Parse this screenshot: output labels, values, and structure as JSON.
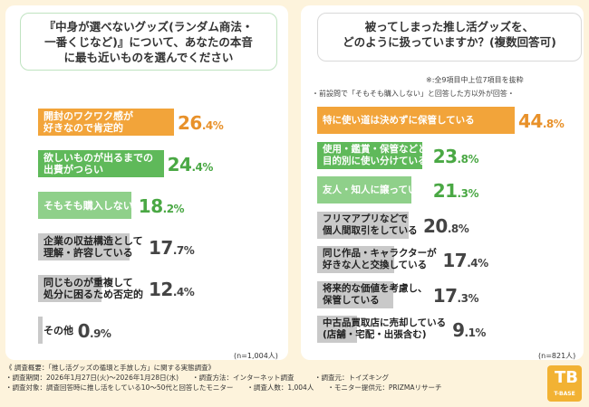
{
  "left": {
    "question": "『中身が選べないグッズ(ランダム商法・一番くじなど)』について、あなたの本音に最も近いものを選んでください",
    "question_lines": [
      "『中身が選べないグッズ(ランダム商法・",
      "一番くじなど)』について、あなたの本音",
      "に最も近いものを選んでください"
    ],
    "n": "(n=1,004人)"
  },
  "right": {
    "question_lines": [
      "被ってしまった推し活グッズを、",
      "どのように扱っていますか？(複数回答可)"
    ],
    "note1": "※:全9項目中上位7項目を抜粋",
    "note2": "・前設問で「そもそも購入しない」と回答した方以外が回答・",
    "n": "(n=821人)"
  },
  "chart_data": [
    {
      "type": "bar",
      "orientation": "horizontal",
      "title": "『中身が選べないグッズ(ランダム商法・一番くじなど)』について、あなたの本音に最も近いものを選んでください",
      "categories": [
        "開封のワクワク感が\n好きなので肯定的",
        "欲しいものが出るまでの\n出費がつらい",
        "そもそも購入しない",
        "企業の収益構造として\n理解・許容している",
        "同じものが重複して\n処分に困るため否定的",
        "その他"
      ],
      "values": [
        26.4,
        24.4,
        18.2,
        17.7,
        12.4,
        0.9
      ],
      "unit": "%",
      "colors": [
        "#f2a43a",
        "#5fb95a",
        "#8fd08a",
        "#c9c9c9",
        "#c9c9c9",
        "#c9c9c9"
      ],
      "pct_colors": [
        "#e8912a",
        "#4aa844",
        "#4aa844",
        "#444444",
        "#444444",
        "#444444"
      ],
      "n": "(n=1,004人)"
    },
    {
      "type": "bar",
      "orientation": "horizontal",
      "title": "被ってしまった推し活グッズを、どのように扱っていますか？(複数回答可)",
      "categories": [
        "特に使い道は決めずに保管している",
        "使用・鑑賞・保管などと\n目的別に使い分けている",
        "友人・知人に譲っている",
        "フリマアプリなどで\n個人間取引をしている",
        "同じ作品・キャラクターが\n好きな人と交換している",
        "将来的な価値を考慮し、\n保管している",
        "中古品買取店に売却している\n(店舗・宅配・出張含む)"
      ],
      "values": [
        44.8,
        23.8,
        21.3,
        20.8,
        17.4,
        17.3,
        9.1
      ],
      "unit": "%",
      "colors": [
        "#f2a43a",
        "#5fb95a",
        "#8fd08a",
        "#c9c9c9",
        "#c9c9c9",
        "#c9c9c9",
        "#c9c9c9"
      ],
      "pct_colors": [
        "#e8912a",
        "#4aa844",
        "#4aa844",
        "#444444",
        "#444444",
        "#444444",
        "#444444"
      ],
      "n": "(n=821人)"
    }
  ],
  "footer": {
    "lines": [
      "《 調査概要：「推し活グッズの循環と手放し方」に関する実態調査》",
      "・調査期間：2026年1月27日(火)〜2026年1月28日(水)　　・調査方法：インターネット調査　　　・調査元：トイズキング",
      "・調査対象：調査回答時に推し活をしている10〜50代と回答したモニター　　・調査人数：1,004人　　・モニター提供元：PRIZMAリサーチ"
    ]
  },
  "logo": {
    "mark": "TB",
    "brand": "T-BASE"
  }
}
